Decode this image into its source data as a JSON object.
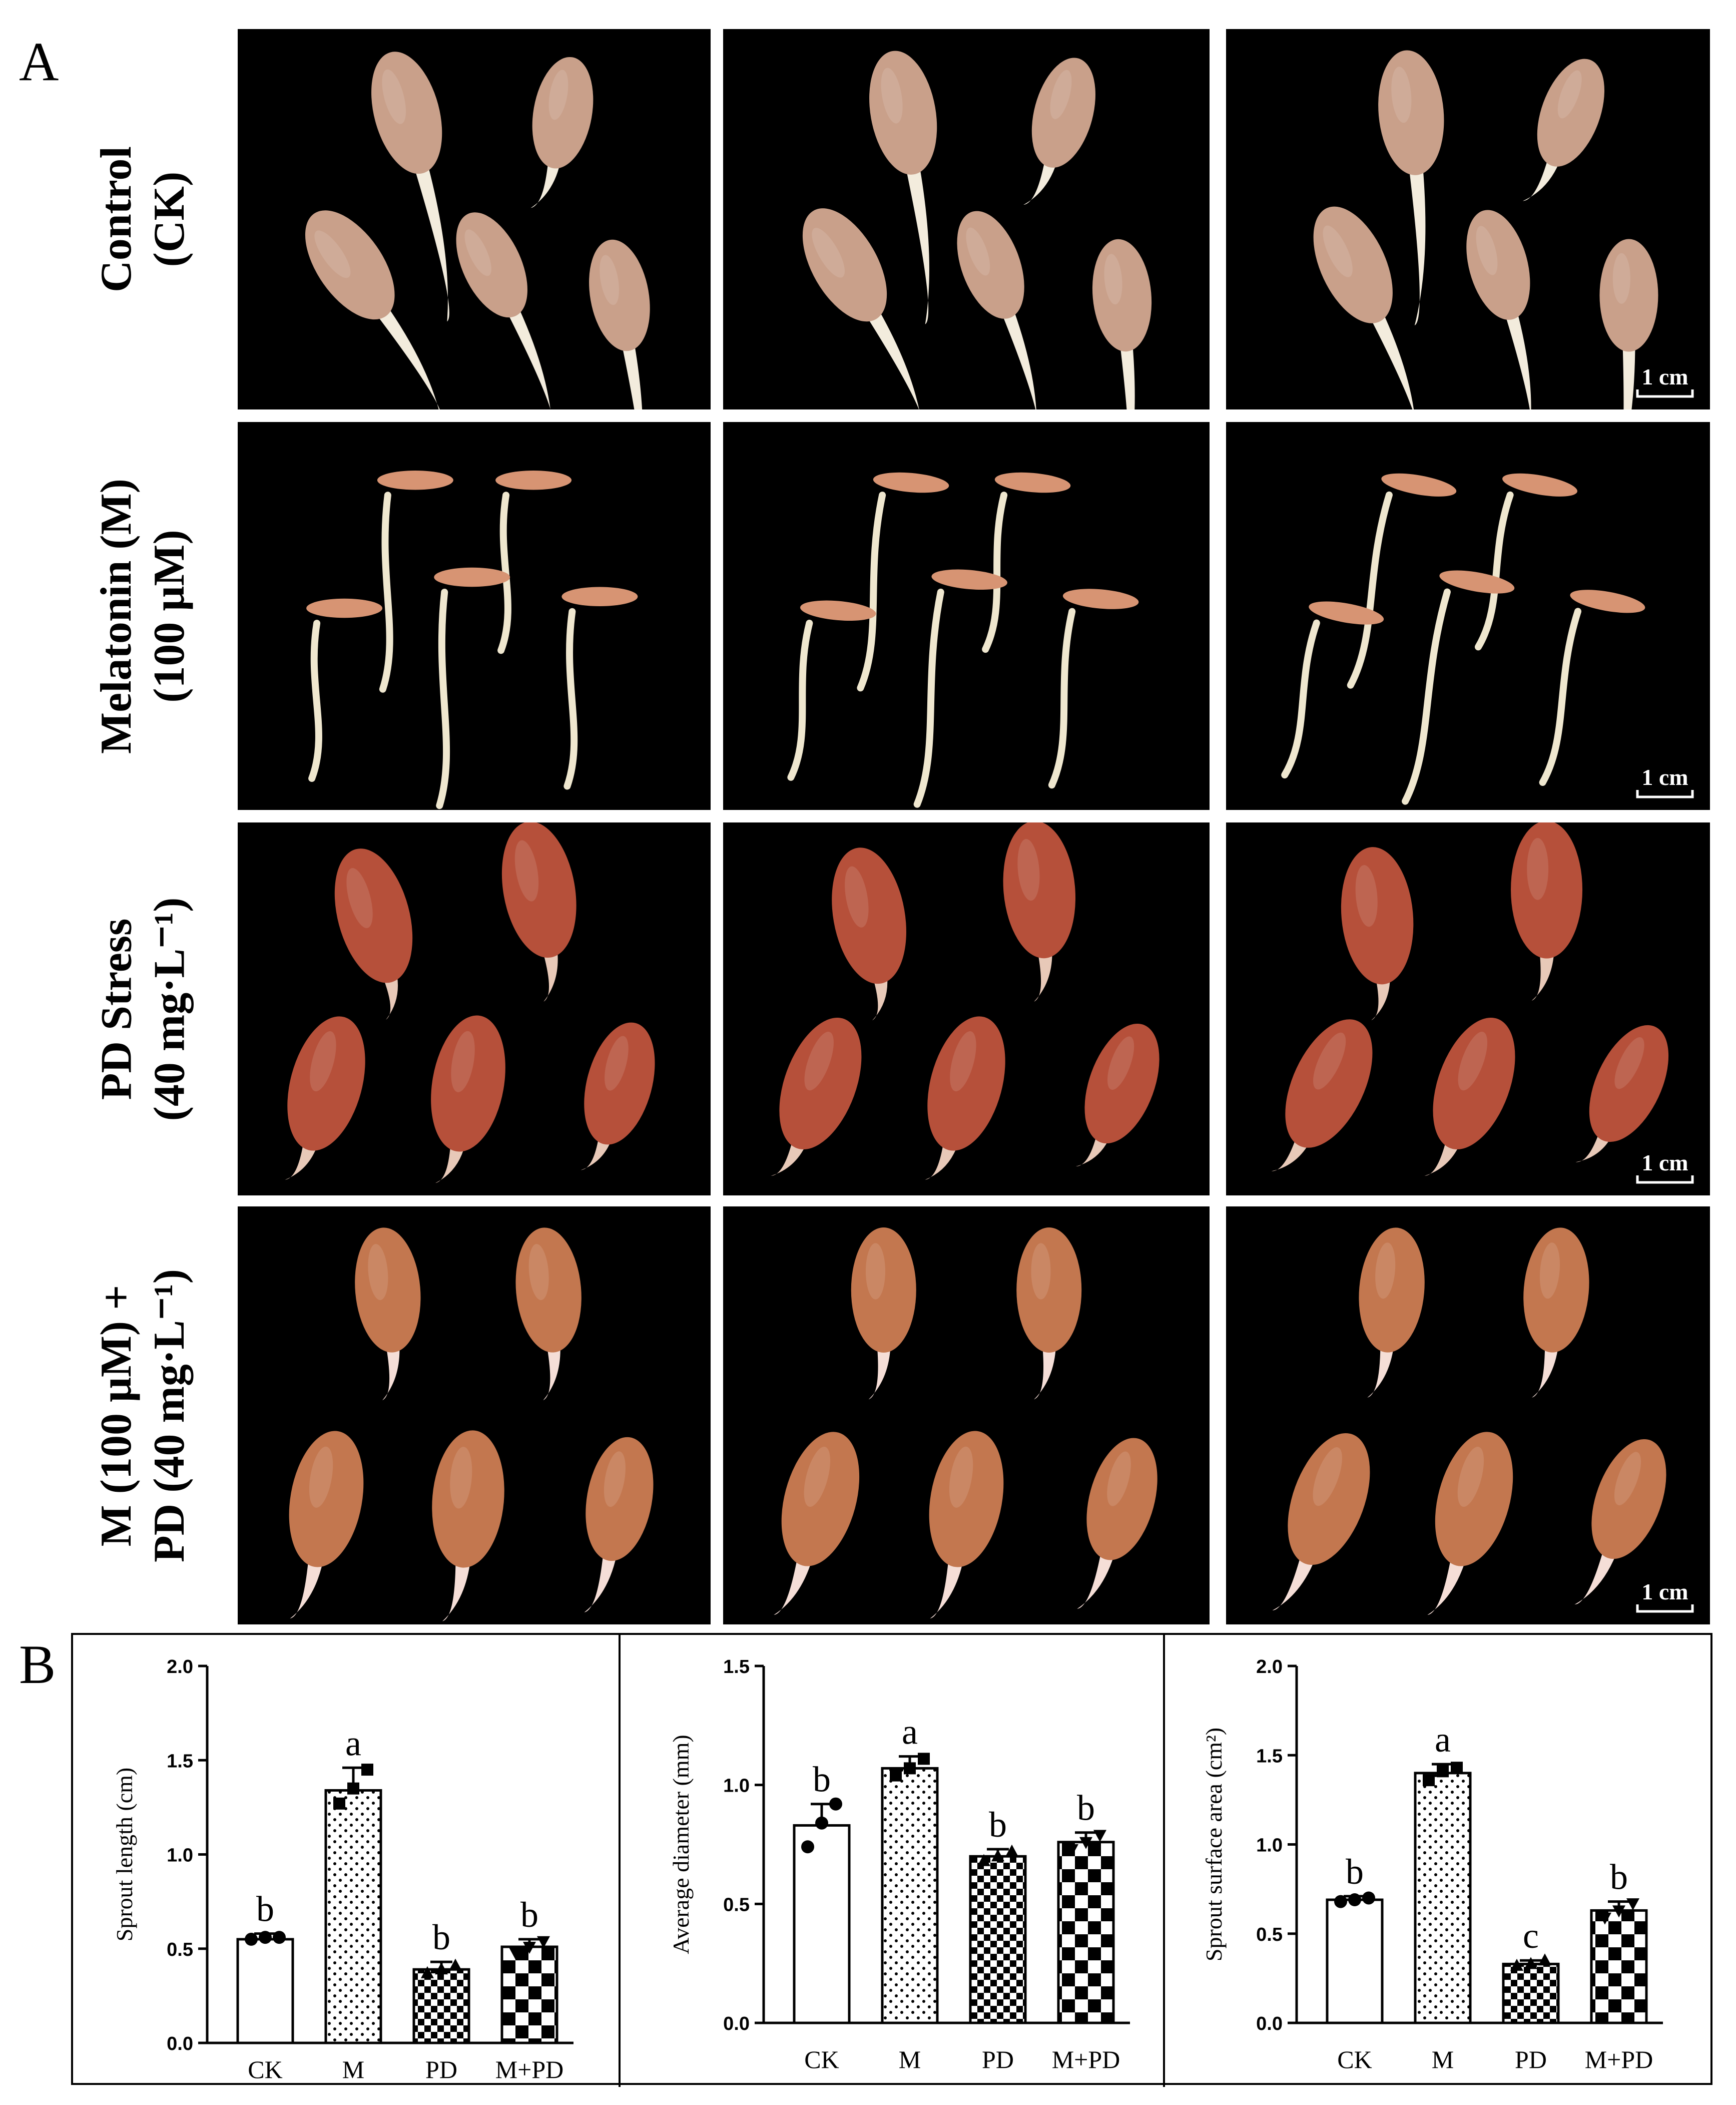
{
  "panel_a": {
    "letter": "A",
    "rows": [
      {
        "label_lines": [
          "Control",
          "(CK)"
        ],
        "bg": "#e6e3e4",
        "seed_color": "#c9a08a",
        "sprout_color": "#f3ecdd"
      },
      {
        "label_lines": [
          "Melatonin (M)",
          "(100 μM)"
        ],
        "bg": "#e2efdc",
        "seed_color": "#d79473",
        "sprout_color": "#efe7cf"
      },
      {
        "label_lines": [
          "PD Stress",
          "(40 mg·L⁻¹)"
        ],
        "bg": "#fde4a0",
        "seed_color": "#b6503a",
        "sprout_color": "#e8c9b8"
      },
      {
        "label_lines": [
          "M (100 μM) +",
          "PD (40 mg·L⁻¹)"
        ],
        "bg": "#cce6bf",
        "seed_color": "#c3774f",
        "sprout_color": "#f5ded7"
      }
    ],
    "scale_bar_label": "1 cm"
  },
  "panel_b": {
    "letter": "B"
  },
  "chart_data": [
    {
      "type": "bar",
      "categories": [
        "CK",
        "M",
        "PD",
        "M+PD"
      ],
      "values": [
        0.55,
        1.34,
        0.39,
        0.51
      ],
      "errors": [
        0.03,
        0.12,
        0.04,
        0.04
      ],
      "points": [
        [
          0.55,
          0.56,
          0.56
        ],
        [
          1.27,
          1.35,
          1.45
        ],
        [
          0.37,
          0.39,
          0.41
        ],
        [
          0.48,
          0.51,
          0.54
        ]
      ],
      "letters": [
        "b",
        "a",
        "b",
        "b"
      ],
      "patterns": [
        "white",
        "dots",
        "checker-small",
        "checker-large"
      ],
      "markers": [
        "circle",
        "square",
        "triangle",
        "triangle-down"
      ],
      "ylabel": "Sprout length (cm)",
      "xlabel": "",
      "ylim": [
        0,
        2.0
      ],
      "yticks": [
        "0.0",
        "0.5",
        "1.0",
        "1.5",
        "2.0"
      ]
    },
    {
      "type": "bar",
      "categories": [
        "CK",
        "M",
        "PD",
        "M+PD"
      ],
      "values": [
        0.83,
        1.07,
        0.7,
        0.76
      ],
      "errors": [
        0.09,
        0.05,
        0.03,
        0.04
      ],
      "points": [
        [
          0.74,
          0.84,
          0.92
        ],
        [
          1.04,
          1.07,
          1.11
        ],
        [
          0.68,
          0.7,
          0.72
        ],
        [
          0.73,
          0.76,
          0.79
        ]
      ],
      "letters": [
        "b",
        "a",
        "b",
        "b"
      ],
      "patterns": [
        "white",
        "dots",
        "checker-small",
        "checker-large"
      ],
      "markers": [
        "circle",
        "square",
        "triangle",
        "triangle-down"
      ],
      "ylabel": "Average diameter (mm)",
      "xlabel": "",
      "ylim": [
        0,
        1.5
      ],
      "yticks": [
        "0.0",
        "0.5",
        "1.0",
        "1.5"
      ]
    },
    {
      "type": "bar",
      "categories": [
        "CK",
        "M",
        "PD",
        "M+PD"
      ],
      "values": [
        0.69,
        1.4,
        0.33,
        0.63
      ],
      "errors": [
        0.02,
        0.05,
        0.02,
        0.05
      ],
      "points": [
        [
          0.68,
          0.69,
          0.7
        ],
        [
          1.36,
          1.41,
          1.43
        ],
        [
          0.32,
          0.33,
          0.35
        ],
        [
          0.59,
          0.63,
          0.67
        ]
      ],
      "letters": [
        "b",
        "a",
        "c",
        "b"
      ],
      "patterns": [
        "white",
        "dots",
        "checker-small",
        "checker-large"
      ],
      "markers": [
        "circle",
        "square",
        "triangle",
        "triangle-down"
      ],
      "ylabel": "Sprout surface area (cm²)",
      "xlabel": "",
      "ylim": [
        0,
        2.0
      ],
      "yticks": [
        "0.0",
        "0.5",
        "1.0",
        "1.5",
        "2.0"
      ]
    }
  ]
}
